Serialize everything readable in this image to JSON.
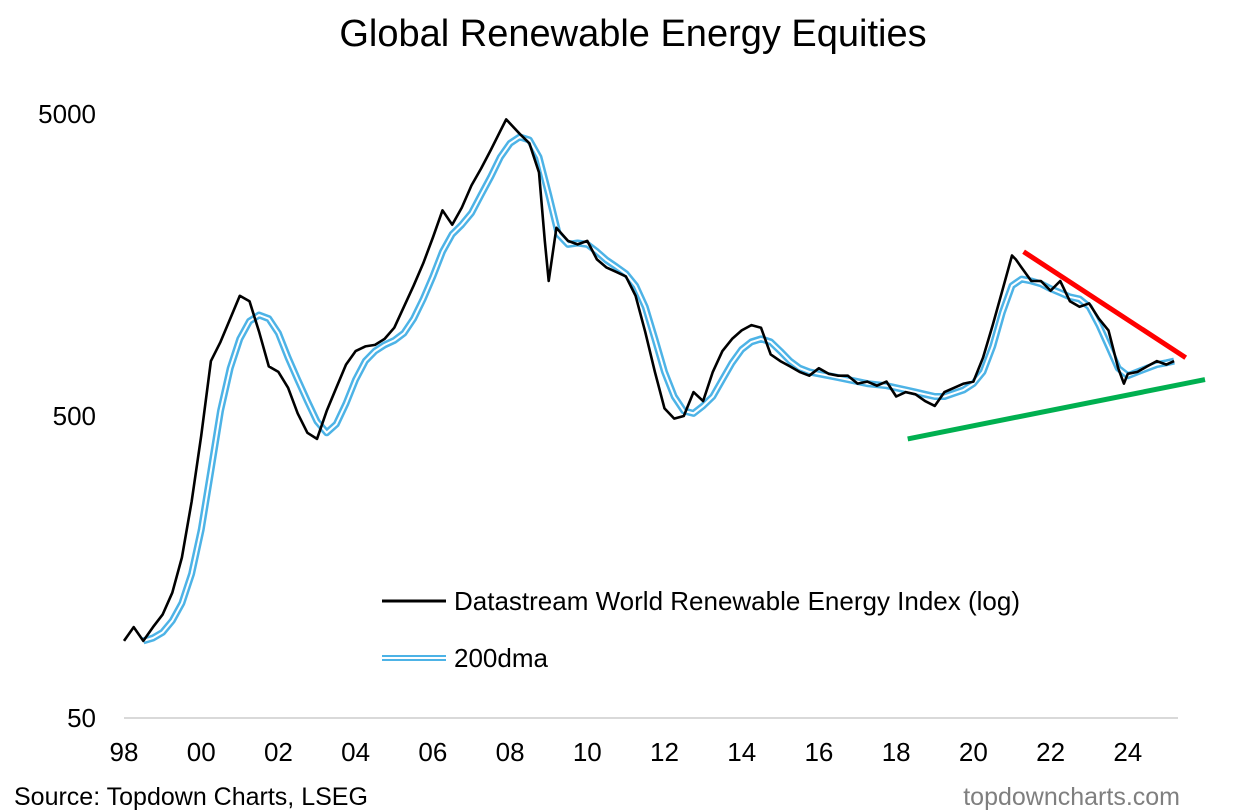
{
  "chart_data": {
    "type": "line",
    "title": "Global Renewable Energy Equities",
    "y_scale": "log",
    "ylim": [
      50,
      5000
    ],
    "y_ticks": [
      "50",
      "500",
      "5000"
    ],
    "xlim": [
      1998,
      2025.3
    ],
    "x_ticks": [
      "98",
      "00",
      "02",
      "04",
      "06",
      "08",
      "10",
      "12",
      "14",
      "16",
      "18",
      "20",
      "22",
      "24"
    ],
    "legend_position": "bottom-right",
    "series": [
      {
        "name": "Datastream World Renewable Energy Index (log)",
        "color": "#000000",
        "x": [
          1998.0,
          1998.25,
          1998.5,
          1998.75,
          1999.0,
          1999.25,
          1999.5,
          1999.75,
          2000.0,
          2000.25,
          2000.5,
          2000.75,
          2001.0,
          2001.25,
          2001.5,
          2001.75,
          2002.0,
          2002.25,
          2002.5,
          2002.75,
          2003.0,
          2003.25,
          2003.5,
          2003.75,
          2004.0,
          2004.25,
          2004.5,
          2004.75,
          2005.0,
          2005.25,
          2005.5,
          2005.75,
          2006.0,
          2006.25,
          2006.5,
          2006.75,
          2007.0,
          2007.25,
          2007.5,
          2007.75,
          2007.9,
          2008.25,
          2008.5,
          2008.75,
          2008.9,
          2009.0,
          2009.2,
          2009.5,
          2009.75,
          2010.0,
          2010.25,
          2010.5,
          2010.75,
          2011.0,
          2011.25,
          2011.5,
          2011.75,
          2012.0,
          2012.25,
          2012.5,
          2012.75,
          2013.0,
          2013.25,
          2013.5,
          2013.75,
          2014.0,
          2014.25,
          2014.5,
          2014.75,
          2015.0,
          2015.25,
          2015.5,
          2015.75,
          2016.0,
          2016.25,
          2016.5,
          2016.75,
          2017.0,
          2017.25,
          2017.5,
          2017.75,
          2018.0,
          2018.25,
          2018.5,
          2018.75,
          2019.0,
          2019.25,
          2019.5,
          2019.75,
          2020.0,
          2020.25,
          2020.5,
          2020.75,
          2021.0,
          2021.1,
          2021.25,
          2021.5,
          2021.75,
          2022.0,
          2022.25,
          2022.5,
          2022.75,
          2023.0,
          2023.25,
          2023.5,
          2023.75,
          2023.9,
          2024.0,
          2024.25,
          2024.5,
          2024.75,
          2025.0,
          2025.2
        ],
        "values": [
          90,
          100,
          90,
          100,
          110,
          130,
          170,
          260,
          430,
          760,
          880,
          1050,
          1250,
          1200,
          950,
          730,
          700,
          620,
          510,
          440,
          420,
          520,
          620,
          740,
          820,
          850,
          860,
          900,
          980,
          1150,
          1350,
          1600,
          1950,
          2400,
          2150,
          2450,
          2900,
          3300,
          3800,
          4400,
          4800,
          4300,
          4000,
          3200,
          1900,
          1400,
          2100,
          1900,
          1850,
          1900,
          1650,
          1550,
          1500,
          1450,
          1250,
          950,
          700,
          530,
          490,
          500,
          600,
          560,
          700,
          820,
          900,
          960,
          1000,
          980,
          800,
          760,
          730,
          700,
          680,
          720,
          690,
          680,
          680,
          640,
          650,
          630,
          650,
          580,
          600,
          590,
          560,
          540,
          600,
          620,
          640,
          650,
          780,
          1000,
          1300,
          1700,
          1650,
          1550,
          1400,
          1400,
          1300,
          1400,
          1200,
          1150,
          1180,
          1050,
          960,
          720,
          640,
          690,
          700,
          730,
          760,
          740,
          760
        ]
      },
      {
        "name": "200dma",
        "color": "#4db3e6",
        "x": [
          1998.5,
          1998.75,
          1999.0,
          1999.25,
          1999.5,
          1999.75,
          2000.0,
          2000.25,
          2000.5,
          2000.75,
          2001.0,
          2001.25,
          2001.5,
          2001.75,
          2002.0,
          2002.25,
          2002.5,
          2002.75,
          2003.0,
          2003.25,
          2003.5,
          2003.75,
          2004.0,
          2004.25,
          2004.5,
          2004.75,
          2005.0,
          2005.25,
          2005.5,
          2005.75,
          2006.0,
          2006.25,
          2006.5,
          2006.75,
          2007.0,
          2007.25,
          2007.5,
          2007.75,
          2008.0,
          2008.25,
          2008.5,
          2008.75,
          2009.0,
          2009.25,
          2009.5,
          2009.75,
          2010.0,
          2010.25,
          2010.5,
          2010.75,
          2011.0,
          2011.25,
          2011.5,
          2011.75,
          2012.0,
          2012.25,
          2012.5,
          2012.75,
          2013.0,
          2013.25,
          2013.5,
          2013.75,
          2014.0,
          2014.25,
          2014.5,
          2014.75,
          2015.0,
          2015.25,
          2015.5,
          2015.75,
          2016.0,
          2016.25,
          2016.5,
          2016.75,
          2017.0,
          2017.25,
          2017.5,
          2017.75,
          2018.0,
          2018.25,
          2018.5,
          2018.75,
          2019.0,
          2019.25,
          2019.5,
          2019.75,
          2020.0,
          2020.25,
          2020.5,
          2020.75,
          2021.0,
          2021.25,
          2021.5,
          2021.75,
          2022.0,
          2022.25,
          2022.5,
          2022.75,
          2023.0,
          2023.25,
          2023.5,
          2023.75,
          2024.0,
          2024.25,
          2024.5,
          2024.75,
          2025.0,
          2025.2
        ],
        "values": [
          90,
          92,
          96,
          105,
          120,
          150,
          210,
          330,
          520,
          720,
          900,
          1030,
          1080,
          1050,
          940,
          780,
          660,
          560,
          480,
          440,
          470,
          550,
          660,
          760,
          820,
          860,
          890,
          940,
          1050,
          1220,
          1450,
          1750,
          2000,
          2150,
          2350,
          2700,
          3100,
          3600,
          4000,
          4200,
          4100,
          3600,
          2700,
          2000,
          1850,
          1870,
          1850,
          1750,
          1640,
          1560,
          1480,
          1350,
          1150,
          900,
          700,
          580,
          520,
          510,
          540,
          580,
          660,
          750,
          830,
          880,
          900,
          880,
          820,
          760,
          720,
          700,
          690,
          680,
          670,
          660,
          650,
          640,
          635,
          630,
          620,
          610,
          600,
          590,
          580,
          580,
          595,
          610,
          640,
          700,
          850,
          1100,
          1350,
          1420,
          1400,
          1370,
          1320,
          1280,
          1240,
          1220,
          1150,
          1000,
          850,
          720,
          680,
          700,
          720,
          740,
          750,
          760
        ]
      }
    ],
    "trendlines": [
      {
        "name": "resistance",
        "color": "#ff0000",
        "x": [
          2021.3,
          2025.5
        ],
        "values": [
          1750,
          780
        ]
      },
      {
        "name": "support",
        "color": "#00b050",
        "x": [
          2018.3,
          2026.0
        ],
        "values": [
          420,
          660
        ]
      }
    ]
  },
  "footer": {
    "source": "Source: Topdown Charts, LSEG",
    "website": "topdowncharts.com"
  }
}
